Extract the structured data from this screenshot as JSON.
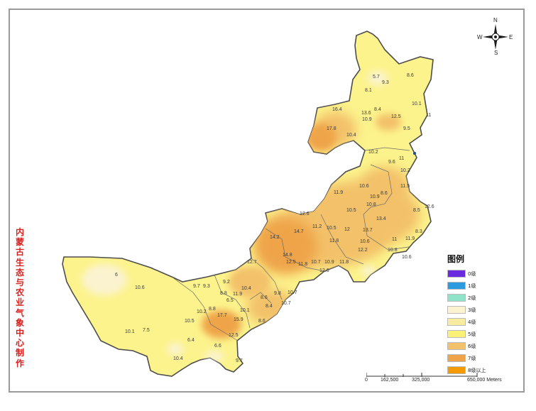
{
  "credit_text": "内蒙古生态与农业气象中心制作",
  "compass": {
    "n": "N",
    "s": "S",
    "e": "E",
    "w": "W"
  },
  "legend": {
    "title": "图例",
    "items": [
      {
        "label": "0级",
        "color": "#6a2be0"
      },
      {
        "label": "1级",
        "color": "#2c9be0"
      },
      {
        "label": "2级",
        "color": "#8fe3c8"
      },
      {
        "label": "3级",
        "color": "#fbf3cf"
      },
      {
        "label": "4级",
        "color": "#f7eca0"
      },
      {
        "label": "5级",
        "color": "#fbf176"
      },
      {
        "label": "6级",
        "color": "#f3c169"
      },
      {
        "label": "7级",
        "color": "#efa449"
      },
      {
        "label": "8级以上",
        "color": "#f39a06"
      }
    ]
  },
  "scalebar": {
    "ticks": [
      "0",
      "162,500",
      "325,000",
      "650,000 Meters"
    ]
  },
  "station_values": [
    "5.7",
    "8.6",
    "9.3",
    "8.1",
    "10.1",
    "16.4",
    "13.6",
    "8.4",
    "12.5",
    "11",
    "10.9",
    "17.8",
    "10.4",
    "9.5",
    "10.2",
    "9.6",
    "11",
    "10.2",
    "10.6",
    "11.5",
    "10.9",
    "8.6",
    "12.6",
    "11.9",
    "10.5",
    "10.8",
    "8.5",
    "12.6",
    "14.7",
    "11.2",
    "10.5",
    "13.4",
    "12",
    "13.7",
    "8.3",
    "14.2",
    "11.8",
    "10.6",
    "11",
    "11.9",
    "14.8",
    "12.2",
    "10.8",
    "12.5",
    "11.8",
    "10.7",
    "10.9",
    "11.8",
    "10.6",
    "6",
    "12.7",
    "10.6",
    "12.6",
    "9.7",
    "9.3",
    "9.2",
    "8.8",
    "10.4",
    "11.9",
    "8.6",
    "9.8",
    "10.7",
    "8.8",
    "10.2",
    "6.5",
    "8.4",
    "10.7",
    "10.5",
    "17.7",
    "10.1",
    "15.9",
    "8.6",
    "10.1",
    "7.5",
    "12.5",
    "6.4",
    "6.6",
    "10.4",
    "9.7"
  ]
}
